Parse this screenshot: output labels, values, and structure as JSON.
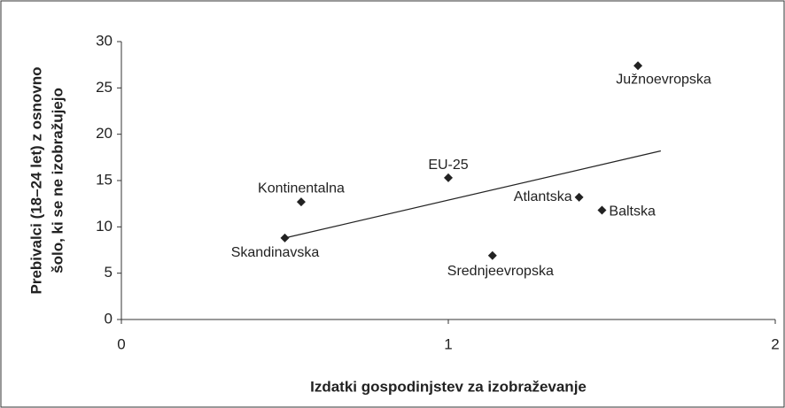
{
  "chart_data": {
    "type": "scatter",
    "x_label": "Izdatki gospodinjstev za izobraževanje",
    "y_label": [
      "Prebivalci (18–24 let) z osnovno",
      "šolo, ki se ne izobražujejo"
    ],
    "labels": [
      "Skandinavska",
      "Kontinentalna",
      "EU-25",
      "Srednjeevropska",
      "Atlantska",
      "Baltska",
      "Južnoevropska"
    ],
    "x": [
      0.5,
      0.55,
      1.0,
      1.135,
      1.4,
      1.47,
      1.58
    ],
    "values": [
      8.8,
      12.7,
      15.3,
      6.9,
      13.2,
      11.8,
      27.4
    ],
    "color": "#222222",
    "trendline": {
      "x": [
        0.5,
        1.65
      ],
      "y": [
        8.8,
        18.2
      ]
    },
    "xlim": [
      0,
      2
    ],
    "xticks": [
      0,
      1,
      2
    ],
    "ylim": [
      0,
      30
    ],
    "yticks": [
      0,
      5,
      10,
      15,
      20,
      25,
      30
    ],
    "grid": false
  }
}
